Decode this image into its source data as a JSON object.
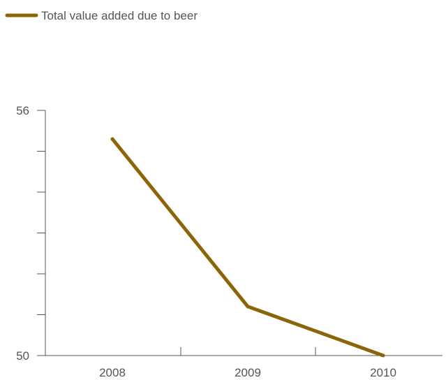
{
  "chart_data": {
    "type": "line",
    "title": "",
    "xlabel": "",
    "ylabel": "",
    "categories": [
      "2008",
      "2009",
      "2010"
    ],
    "series": [
      {
        "name": "Total value added due to beer",
        "color": "#8B6508",
        "values": [
          55.3,
          51.2,
          50.0
        ]
      }
    ],
    "ylim": [
      50,
      56
    ],
    "y_tick_labels": [
      "50",
      "56"
    ],
    "x_tick_labels": [
      "2008",
      "2009",
      "2010"
    ],
    "grid": false,
    "legend": {
      "position": "top-left",
      "entries": [
        "Total value added due to beer"
      ]
    }
  }
}
